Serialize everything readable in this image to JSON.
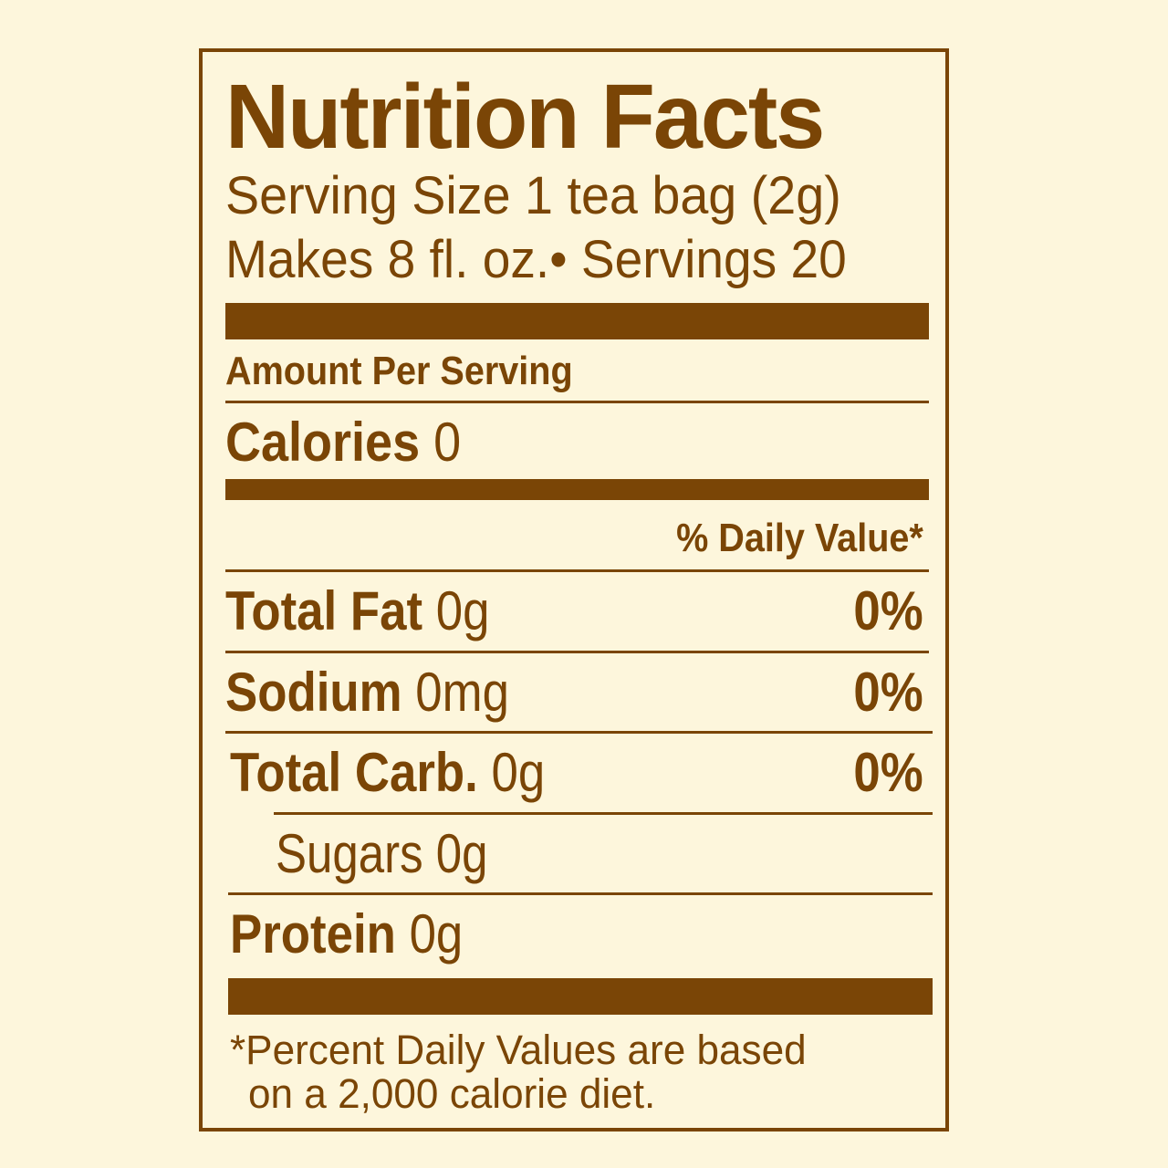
{
  "colors": {
    "background": "#fdf6dc",
    "ink": "#7a4506"
  },
  "title": "Nutrition Facts",
  "serving_size": "Serving Size 1 tea bag (2g)",
  "makes": "Makes 8 fl. oz.• Servings 20",
  "amount_per_serving": "Amount Per Serving",
  "calories": {
    "label": "Calories",
    "value": "0"
  },
  "daily_value_header": "% Daily Value*",
  "nutrients": [
    {
      "label": "Total Fat",
      "amount": "0g",
      "dv": "0%"
    },
    {
      "label": "Sodium",
      "amount": "0mg",
      "dv": "0%"
    },
    {
      "label": "Total Carb.",
      "amount": "0g",
      "dv": "0%"
    },
    {
      "label": "Sugars",
      "amount": "0g"
    },
    {
      "label": "Protein",
      "amount": "0g"
    }
  ],
  "footnote": {
    "line1": "*Percent Daily Values are based",
    "line2": "on a 2,000 calorie diet."
  }
}
